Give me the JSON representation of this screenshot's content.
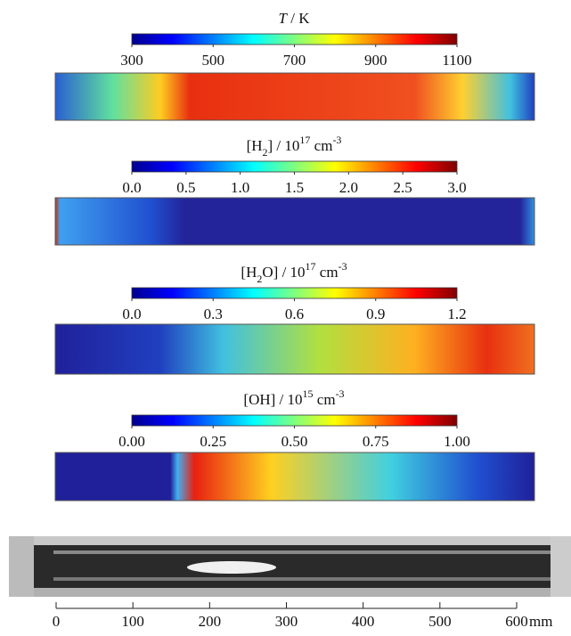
{
  "panels": [
    {
      "title": [
        {
          "text": "T",
          "style": "italic"
        },
        {
          "text": " / K",
          "style": "normal"
        }
      ],
      "clim": [
        300,
        1100
      ],
      "ticks": [
        300,
        500,
        700,
        900,
        1100
      ]
    },
    {
      "title": [
        {
          "text": "[H",
          "style": "normal"
        },
        {
          "text": "2",
          "style": "sub"
        },
        {
          "text": "] / 10",
          "style": "normal"
        },
        {
          "text": "17",
          "style": "sup"
        },
        {
          "text": " cm",
          "style": "normal"
        },
        {
          "text": "-3",
          "style": "sup"
        }
      ],
      "clim": [
        0,
        3
      ],
      "ticks": [
        {
          "value": 0,
          "label": "0.0"
        },
        0.5,
        {
          "value": 1,
          "label": "1.0"
        },
        1.5,
        {
          "value": 2,
          "label": "2.0"
        },
        2.5,
        {
          "value": 3,
          "label": "3.0"
        }
      ]
    },
    {
      "title": [
        {
          "text": "[H",
          "style": "normal"
        },
        {
          "text": "2",
          "style": "sub"
        },
        {
          "text": "O] / 10",
          "style": "normal"
        },
        {
          "text": "17",
          "style": "sup"
        },
        {
          "text": " cm",
          "style": "normal"
        },
        {
          "text": "-3",
          "style": "sup"
        }
      ],
      "clim": [
        0,
        1.2
      ],
      "ticks": [
        {
          "value": 0,
          "label": "0.0"
        },
        0.3,
        0.6,
        0.9,
        1.2
      ]
    },
    {
      "title": [
        {
          "text": "[OH] / 10",
          "style": "normal"
        },
        {
          "text": "15",
          "style": "sup"
        },
        {
          "text": " cm",
          "style": "normal"
        },
        {
          "text": "-3",
          "style": "sup"
        }
      ],
      "clim": [
        0,
        1
      ],
      "ticks": [
        {
          "value": 0,
          "label": "0.00"
        },
        0.25,
        {
          "value": 0.5,
          "label": "0.50"
        },
        0.75,
        {
          "value": 1,
          "label": "1.00"
        }
      ]
    }
  ],
  "scale": {
    "xlim": [
      0,
      600
    ],
    "xticks": [
      0,
      100,
      200,
      300,
      400,
      500,
      600
    ],
    "unit": "mm"
  }
}
